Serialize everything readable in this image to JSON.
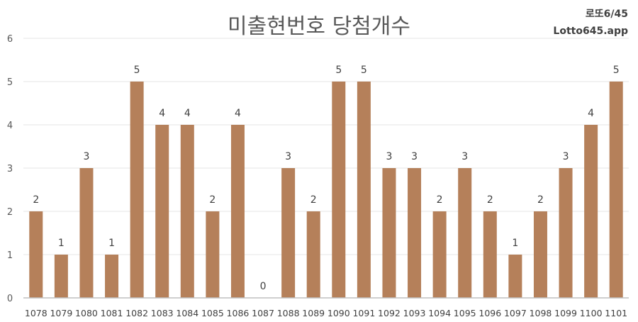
{
  "chart_data": {
    "type": "bar",
    "title": "미출현번호 당첨개수",
    "categories": [
      "1078",
      "1079",
      "1080",
      "1081",
      "1082",
      "1083",
      "1084",
      "1085",
      "1086",
      "1087",
      "1088",
      "1089",
      "1090",
      "1091",
      "1092",
      "1093",
      "1094",
      "1095",
      "1096",
      "1097",
      "1098",
      "1099",
      "1100",
      "1101"
    ],
    "values": [
      2,
      1,
      3,
      1,
      5,
      4,
      4,
      2,
      4,
      0,
      3,
      2,
      5,
      5,
      3,
      3,
      2,
      3,
      2,
      1,
      2,
      3,
      4,
      5
    ],
    "ylim": [
      0,
      6
    ],
    "yticks": [
      0,
      1,
      2,
      3,
      4,
      5,
      6
    ],
    "grid": true,
    "bar_color": "#b5805a",
    "data_labels": true
  },
  "brand": {
    "line1": "로또6/45",
    "line2": "Lotto645.app"
  }
}
